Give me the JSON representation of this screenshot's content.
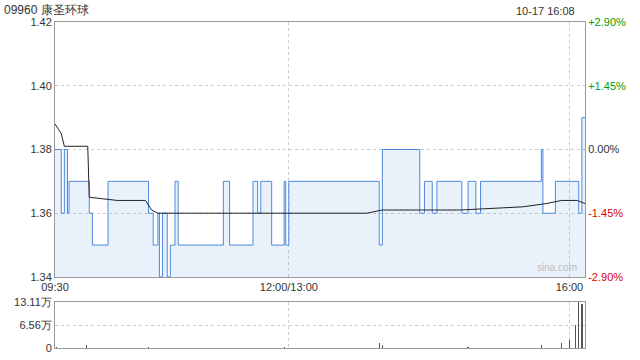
{
  "chart_data": [
    {
      "type": "line",
      "title": "09960 康圣环球",
      "subtitle": "10-17 16:08",
      "annotations": [
        "sina.com"
      ],
      "xlim": [
        0,
        340
      ],
      "xticks": [
        {
          "value": 0,
          "label": "09:30"
        },
        {
          "value": 150,
          "label": "12:00/13:00"
        },
        {
          "value": 330,
          "label": "16:00"
        }
      ],
      "ylim": [
        1.34,
        1.42
      ],
      "yticks": [
        1.34,
        1.36,
        1.38,
        {
          "value": 1.4,
          "label": "1.40"
        },
        1.42
      ],
      "y2lim": [
        -2.9,
        2.9
      ],
      "y2ticks": [
        {
          "value": -2.9,
          "label": "-2.90%"
        },
        {
          "value": -1.45,
          "label": "-1.45%"
        },
        {
          "value": 0,
          "label": "0.00%"
        },
        {
          "value": 1.45,
          "label": "+1.45%"
        },
        {
          "value": 2.9,
          "label": "+2.90%"
        }
      ],
      "grid": true,
      "series": [
        {
          "color": "#4d88e0",
          "line_style": "step",
          "x": [
            0,
            4,
            6,
            8,
            9,
            22,
            24,
            34,
            60,
            63,
            66,
            67,
            69,
            72,
            74,
            77,
            79,
            108,
            112,
            127,
            130,
            132,
            139,
            147,
            148,
            150,
            208,
            210,
            234,
            237,
            242,
            245,
            261,
            265,
            270,
            273,
            312,
            313,
            321,
            336,
            338,
            340
          ],
          "values": [
            1.38,
            1.36,
            1.38,
            1.36,
            1.37,
            1.36,
            1.35,
            1.37,
            1.36,
            1.35,
            1.36,
            1.34,
            1.36,
            1.34,
            1.35,
            1.37,
            1.35,
            1.37,
            1.35,
            1.37,
            1.36,
            1.37,
            1.35,
            1.37,
            1.35,
            1.37,
            1.35,
            1.38,
            1.36,
            1.37,
            1.36,
            1.37,
            1.36,
            1.37,
            1.36,
            1.37,
            1.38,
            1.36,
            1.37,
            1.36,
            1.39,
            1.39
          ]
        },
        {
          "color": "#222222",
          "line_style": "solid",
          "x": [
            0,
            3,
            4,
            6,
            21,
            22,
            40,
            58,
            62,
            66,
            120,
            200,
            210,
            260,
            300,
            315,
            325,
            335,
            340
          ],
          "values": [
            1.388,
            1.386,
            1.385,
            1.381,
            1.381,
            1.365,
            1.364,
            1.364,
            1.361,
            1.36,
            1.36,
            1.36,
            1.361,
            1.361,
            1.362,
            1.363,
            1.364,
            1.364,
            1.363
          ]
        }
      ]
    },
    {
      "type": "bar",
      "x": [
        1,
        20,
        60,
        147,
        208,
        210,
        265,
        312,
        325,
        330,
        334,
        336,
        338
      ],
      "values": [
        3000,
        8000,
        2000,
        4000,
        15000,
        9000,
        3000,
        8000,
        13000,
        23000,
        65000,
        131100,
        125000
      ],
      "color": "#555555",
      "xlim": [
        0,
        340
      ],
      "xticks": [
        0,
        150,
        330
      ],
      "ylim": [
        0,
        131100
      ],
      "yticks": [
        0,
        {
          "value": 65600,
          "label": "6.56万"
        },
        {
          "value": 131100,
          "label": "13.11万"
        }
      ],
      "grid": true,
      "tick_labels": "y"
    }
  ]
}
